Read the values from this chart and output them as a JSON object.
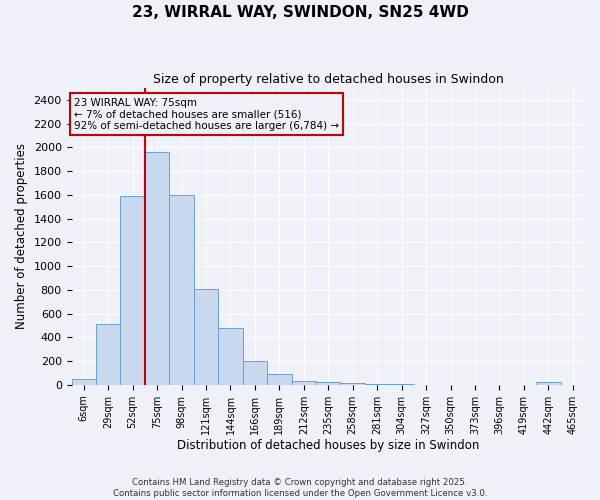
{
  "title": "23, WIRRAL WAY, SWINDON, SN25 4WD",
  "subtitle": "Size of property relative to detached houses in Swindon",
  "xlabel": "Distribution of detached houses by size in Swindon",
  "ylabel": "Number of detached properties",
  "footer_line1": "Contains HM Land Registry data © Crown copyright and database right 2025.",
  "footer_line2": "Contains public sector information licensed under the Open Government Licence v3.0.",
  "bar_color": "#c8d8ee",
  "bar_edge_color": "#6a9fd8",
  "vline_color": "#cc0000",
  "annotation_text": "23 WIRRAL WAY: 75sqm\n← 7% of detached houses are smaller (516)\n92% of semi-detached houses are larger (6,784) →",
  "annotation_box_color": "#cc0000",
  "background_color": "#eef2f8",
  "grid_color": "#ffffff",
  "categories": [
    "6sqm",
    "29sqm",
    "52sqm",
    "75sqm",
    "98sqm",
    "121sqm",
    "144sqm",
    "166sqm",
    "189sqm",
    "212sqm",
    "235sqm",
    "258sqm",
    "281sqm",
    "304sqm",
    "327sqm",
    "350sqm",
    "373sqm",
    "396sqm",
    "419sqm",
    "442sqm",
    "465sqm"
  ],
  "values": [
    50,
    510,
    1590,
    1960,
    1600,
    810,
    480,
    200,
    90,
    35,
    20,
    12,
    8,
    5,
    0,
    0,
    0,
    0,
    0,
    20,
    0
  ],
  "vline_category": "75sqm",
  "ylim": [
    0,
    2500
  ],
  "yticks": [
    0,
    200,
    400,
    600,
    800,
    1000,
    1200,
    1400,
    1600,
    1800,
    2000,
    2200,
    2400
  ]
}
